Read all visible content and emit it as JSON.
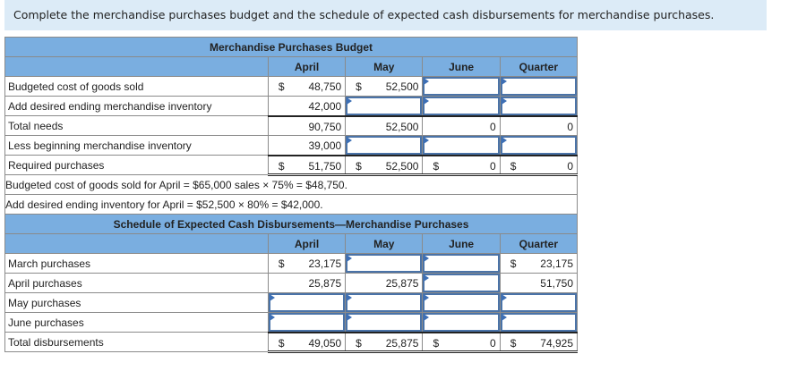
{
  "instructions": "Complete the merchandise purchases budget and the schedule of expected cash disbursements for merchandise purchases.",
  "purchases_budget": {
    "title": "Merchandise Purchases Budget",
    "columns": [
      "April",
      "May",
      "June",
      "Quarter"
    ],
    "rows": [
      {
        "label": "Budgeted cost of goods sold",
        "cells": [
          {
            "dollar": "$",
            "value": "48,750"
          },
          {
            "dollar": "$",
            "value": "52,500"
          },
          {
            "input": true,
            "value": ""
          },
          {
            "input": true,
            "value": ""
          }
        ]
      },
      {
        "label": "Add desired ending merchandise inventory",
        "cells": [
          {
            "dollar": "",
            "value": "42,000"
          },
          {
            "input": true,
            "value": ""
          },
          {
            "input": true,
            "value": ""
          },
          {
            "input": true,
            "value": ""
          }
        ]
      },
      {
        "label": "Total needs",
        "cells": [
          {
            "dollar": "",
            "value": "90,750"
          },
          {
            "dollar": "",
            "value": "52,500"
          },
          {
            "dollar": "",
            "value": "0"
          },
          {
            "dollar": "",
            "value": "0"
          }
        ]
      },
      {
        "label": "Less beginning merchandise inventory",
        "cells": [
          {
            "dollar": "",
            "value": "39,000"
          },
          {
            "input": true,
            "value": ""
          },
          {
            "input": true,
            "value": ""
          },
          {
            "input": true,
            "value": ""
          }
        ]
      },
      {
        "label": "Required purchases",
        "cells": [
          {
            "dollar": "$",
            "value": "51,750"
          },
          {
            "dollar": "$",
            "value": "52,500"
          },
          {
            "dollar": "$",
            "value": "0"
          },
          {
            "dollar": "$",
            "value": "0"
          }
        ]
      }
    ],
    "notes": [
      "Budgeted cost of goods sold for April = $65,000 sales × 75% = $48,750.",
      "Add desired ending inventory for April = $52,500 × 80% = $42,000."
    ]
  },
  "cash_schedule": {
    "title": "Schedule of Expected Cash Disbursements—Merchandise Purchases",
    "columns": [
      "April",
      "May",
      "June",
      "Quarter"
    ],
    "rows": [
      {
        "label": "March purchases",
        "cells": [
          {
            "dollar": "$",
            "value": "23,175"
          },
          {
            "input": true,
            "value": ""
          },
          {
            "input": true,
            "value": ""
          },
          {
            "dollar": "$",
            "value": "23,175"
          }
        ]
      },
      {
        "label": "April purchases",
        "cells": [
          {
            "dollar": "",
            "value": "25,875"
          },
          {
            "dollar": "",
            "value": "25,875"
          },
          {
            "input": true,
            "value": ""
          },
          {
            "dollar": "",
            "value": "51,750"
          }
        ]
      },
      {
        "label": "May purchases",
        "cells": [
          {
            "input": true,
            "value": ""
          },
          {
            "input": true,
            "value": ""
          },
          {
            "input": true,
            "value": ""
          },
          {
            "input": true,
            "value": ""
          }
        ]
      },
      {
        "label": "June purchases",
        "cells": [
          {
            "input": true,
            "value": ""
          },
          {
            "input": true,
            "value": ""
          },
          {
            "input": true,
            "value": ""
          },
          {
            "input": true,
            "value": ""
          }
        ]
      },
      {
        "label": "Total disbursements",
        "cells": [
          {
            "dollar": "$",
            "value": "49,050"
          },
          {
            "dollar": "$",
            "value": "25,875"
          },
          {
            "dollar": "$",
            "value": "0"
          },
          {
            "dollar": "$",
            "value": "74,925"
          }
        ]
      }
    ]
  },
  "colors": {
    "header_bg": "#7aaee0",
    "banner_bg": "#dcebf7",
    "input_border": "#4a73a8"
  }
}
